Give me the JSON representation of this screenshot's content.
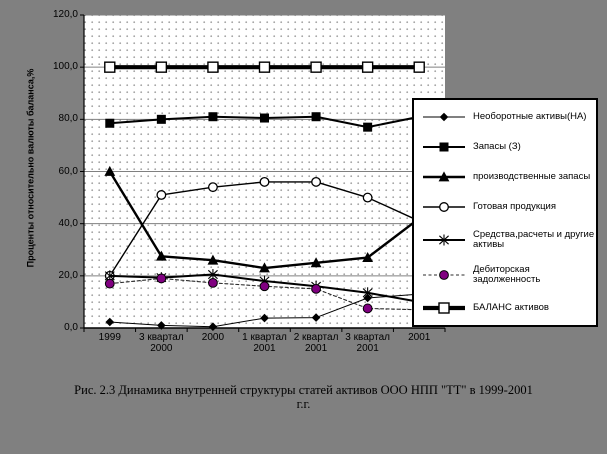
{
  "colors": {
    "page_background": "#808080",
    "plot_background": "#ffffff",
    "plot_dots": "#a3a3a3",
    "gridline": "#808080",
    "axis": "#000000",
    "series_default": "#000000",
    "debitor_marker": "#800080",
    "legend_background": "#ffffff"
  },
  "y_axis": {
    "title": "Проценты относительно валюты баланса,%",
    "tick_labels": [
      "120,0",
      "100,0",
      "80,0",
      "60,0",
      "40,0",
      "20,0",
      "0,0"
    ]
  },
  "x_axis": {
    "tick_labels": [
      [
        "1999"
      ],
      [
        "3 квартал",
        "2000"
      ],
      [
        "2000"
      ],
      [
        "1 квартал",
        "2001"
      ],
      [
        "2 квартал",
        "2001"
      ],
      [
        "3 квартал",
        "2001"
      ],
      [
        "2001"
      ]
    ]
  },
  "caption": {
    "line1": "Рис. 2.3 Динамика внутренней структуры статей активов  ООО НПП \"ТТ\" в 1999-2001",
    "line2": "г.г."
  },
  "chart_data": {
    "type": "line",
    "title": "",
    "xlabel": "",
    "ylabel": "Проценты относительно валюты баланса,%",
    "ylim": [
      0,
      120
    ],
    "ytick_step": 20,
    "grid": true,
    "legend_position": "right-overlay",
    "categories": [
      "1999",
      "3 квартал 2000",
      "2000",
      "1 квартал 2001",
      "2 квартал 2001",
      "3 квартал 2001",
      "2001"
    ],
    "series": [
      {
        "name": "Необоротные активы(НА)",
        "marker": "diamond-filled",
        "line": "solid",
        "width": 1,
        "values": [
          2.3,
          1,
          0.5,
          3.8,
          4,
          11.5,
          13
        ]
      },
      {
        "name": "Запасы (З)",
        "marker": "square-filled",
        "line": "solid",
        "width": 2,
        "values": [
          78.5,
          80,
          81,
          80.5,
          81,
          77,
          81
        ]
      },
      {
        "name": "производственные запасы",
        "marker": "triangle-filled",
        "line": "solid",
        "width": 2.4,
        "values": [
          60,
          27.5,
          26,
          23,
          25,
          27,
          42
        ]
      },
      {
        "name": "Готовая продукция",
        "marker": "circle-open",
        "line": "solid",
        "width": 1.4,
        "values": [
          20,
          51,
          54,
          56,
          56,
          50,
          41
        ]
      },
      {
        "name": "Средства,расчеты и другие активы",
        "marker": "asterisk",
        "line": "solid",
        "width": 2,
        "values": [
          20,
          19.3,
          20.5,
          18,
          16,
          13.5,
          10
        ]
      },
      {
        "name": "Дебиторская задолженность",
        "marker": "circle-filled-purple",
        "line": "dashed",
        "width": 1.1,
        "values": [
          17,
          19,
          17.3,
          16,
          15,
          7.5,
          7
        ]
      },
      {
        "name": "БАЛАНС активов",
        "marker": "square-open",
        "line": "solid",
        "width": 4.2,
        "values": [
          100,
          100,
          100,
          100,
          100,
          100,
          100
        ]
      }
    ]
  }
}
